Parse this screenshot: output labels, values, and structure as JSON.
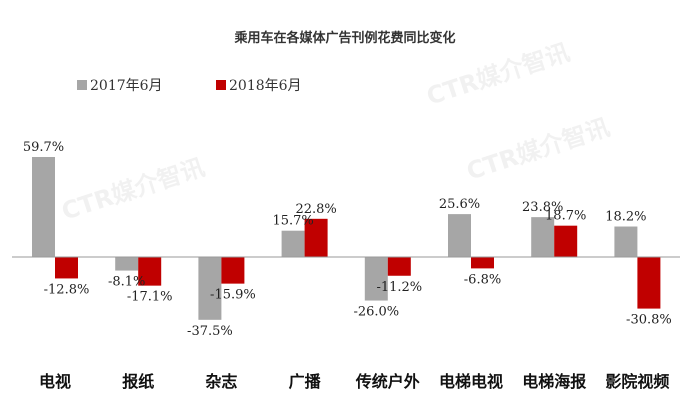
{
  "chart_data": {
    "type": "bar",
    "title": "乘用车在各媒体广告刊例花费同比变化",
    "categories": [
      "电视",
      "报纸",
      "杂志",
      "广播",
      "传统户外",
      "电梯电视",
      "电梯海报",
      "影院视频"
    ],
    "series": [
      {
        "name": "2017年6月",
        "color": "#a6a6a6",
        "values": [
          59.7,
          -8.1,
          -37.5,
          15.7,
          -26.0,
          25.6,
          23.8,
          18.2
        ]
      },
      {
        "name": "2018年6月",
        "color": "#c00000",
        "values": [
          -12.8,
          -17.1,
          -15.9,
          22.8,
          -11.2,
          -6.8,
          18.7,
          -30.8
        ]
      }
    ],
    "unit": "%",
    "legend": "top-left",
    "grid": false,
    "watermark": "CTR媒介智讯"
  }
}
